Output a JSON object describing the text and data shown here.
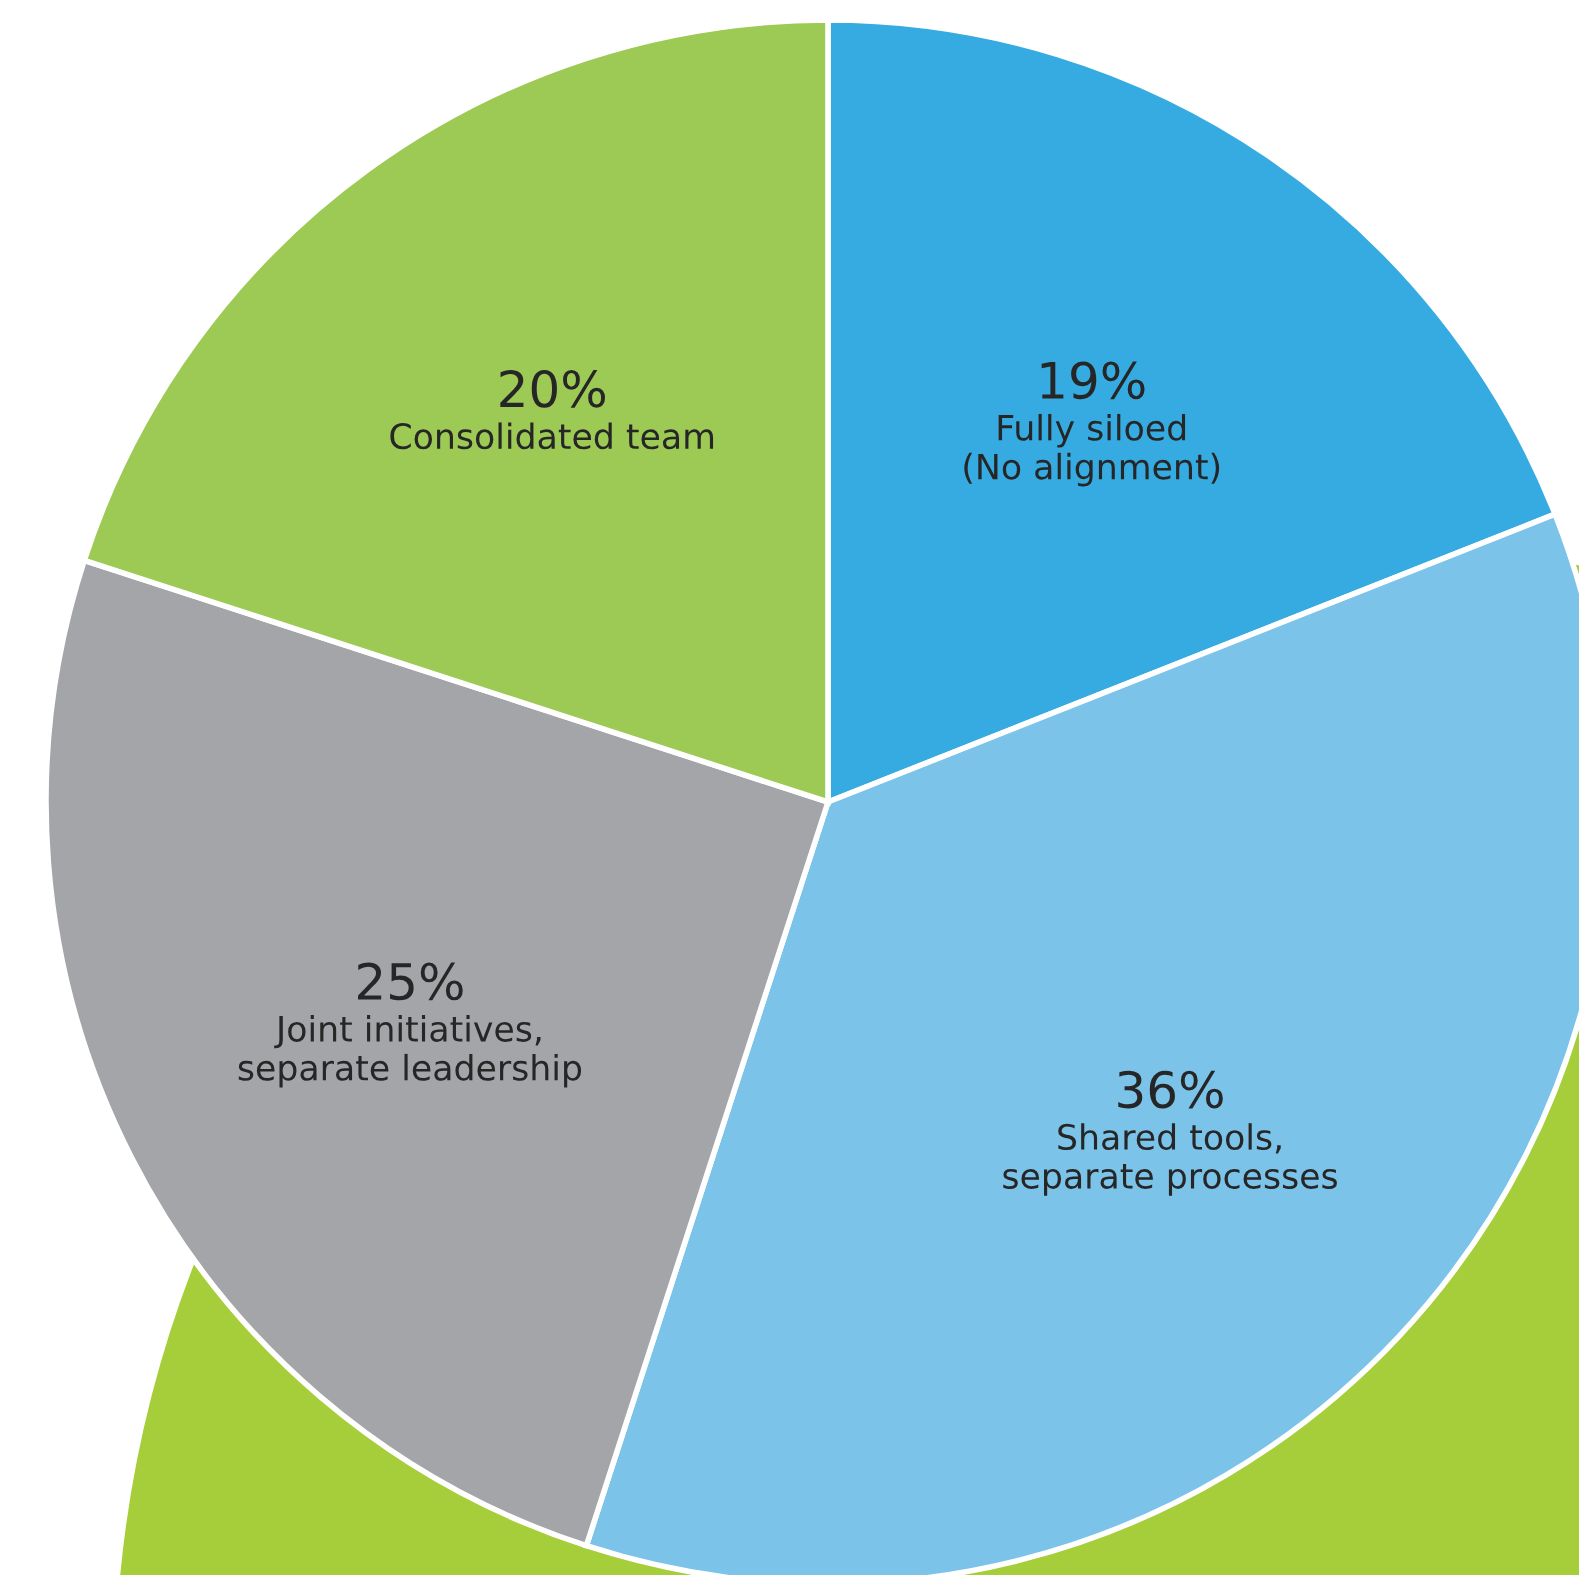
{
  "chart_data": {
    "type": "pie",
    "categories": [
      "Fully siloed\n(No alignment)",
      "Shared tools,\nseparate processes",
      "Joint initiatives,\nseparate leadership",
      "Consolidated team"
    ],
    "values": [
      19,
      36,
      25,
      20
    ],
    "value_labels": [
      "19%",
      "36%",
      "25%",
      "20%"
    ],
    "colors": [
      "#36abe1",
      "#7bc3e9",
      "#a4a5a9",
      "#9dca55"
    ],
    "legend": false
  }
}
